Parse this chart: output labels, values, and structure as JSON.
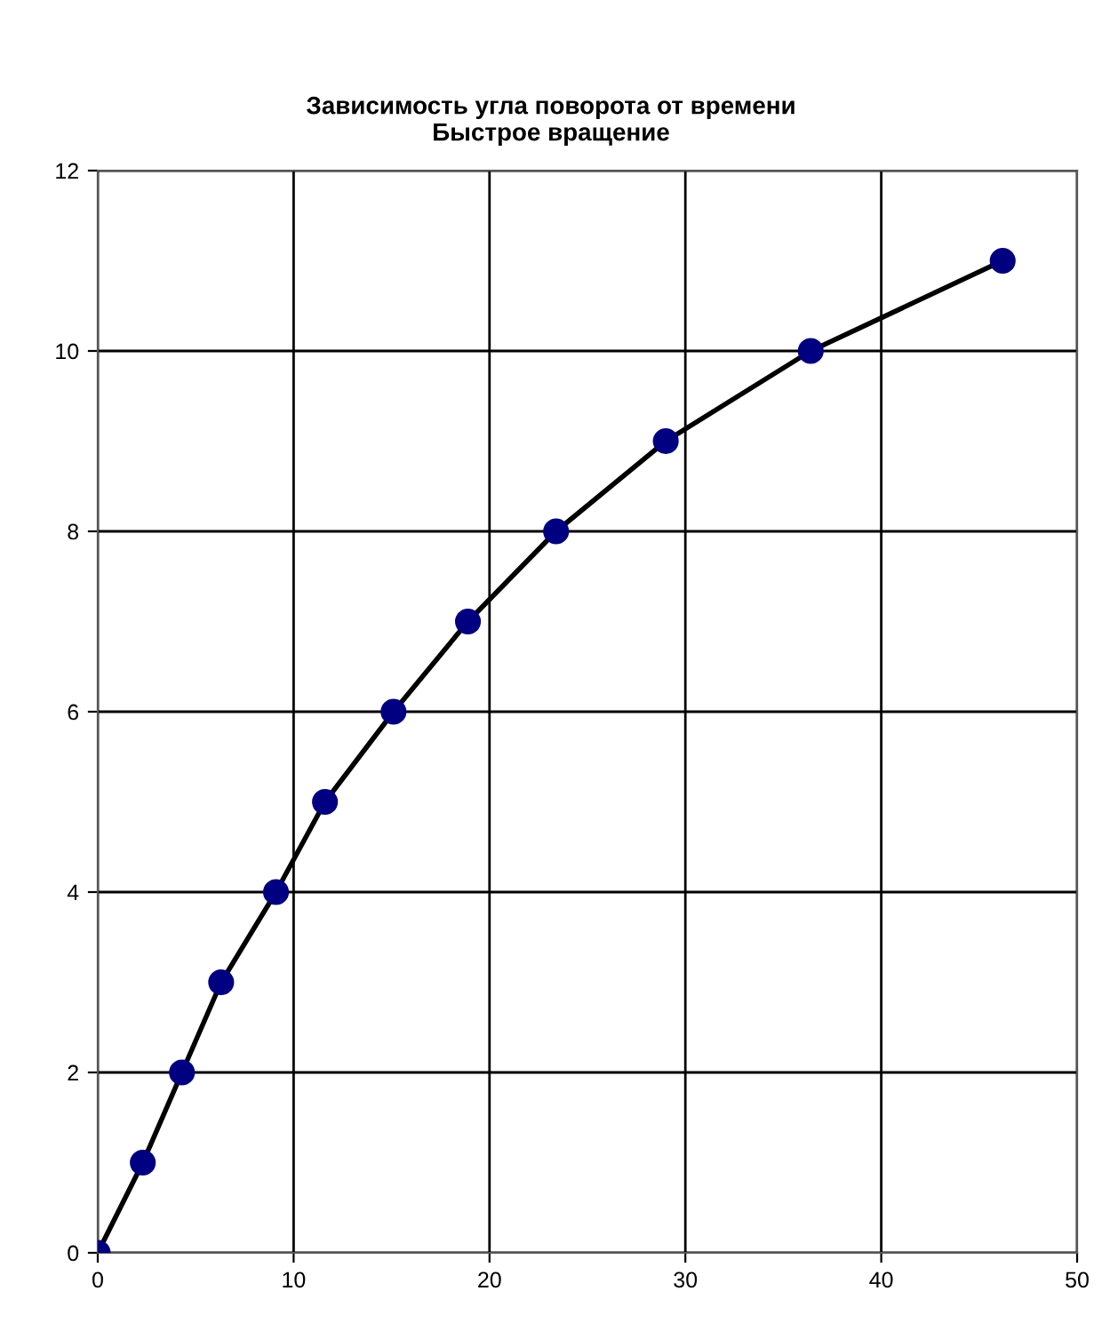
{
  "chart_data": {
    "type": "line",
    "title": "Зависимость угла поворота от времени\nБыстрое вращение",
    "x": [
      0,
      2.3,
      4.3,
      6.3,
      9.1,
      11.6,
      15.1,
      18.9,
      23.4,
      29.0,
      36.4,
      46.2
    ],
    "series": [
      {
        "color": "#000080",
        "values": [
          0,
          1,
          2,
          3,
          4,
          5,
          6,
          7,
          8,
          9,
          10,
          11
        ]
      }
    ],
    "xlim": [
      0,
      50
    ],
    "xticks": [
      0,
      10,
      20,
      30,
      40,
      50
    ],
    "ylim": [
      0,
      12
    ],
    "yticks": [
      0,
      2,
      4,
      6,
      8,
      10,
      12
    ],
    "grid": true,
    "marker": "circle",
    "line_style": "solid",
    "legend": false
  }
}
